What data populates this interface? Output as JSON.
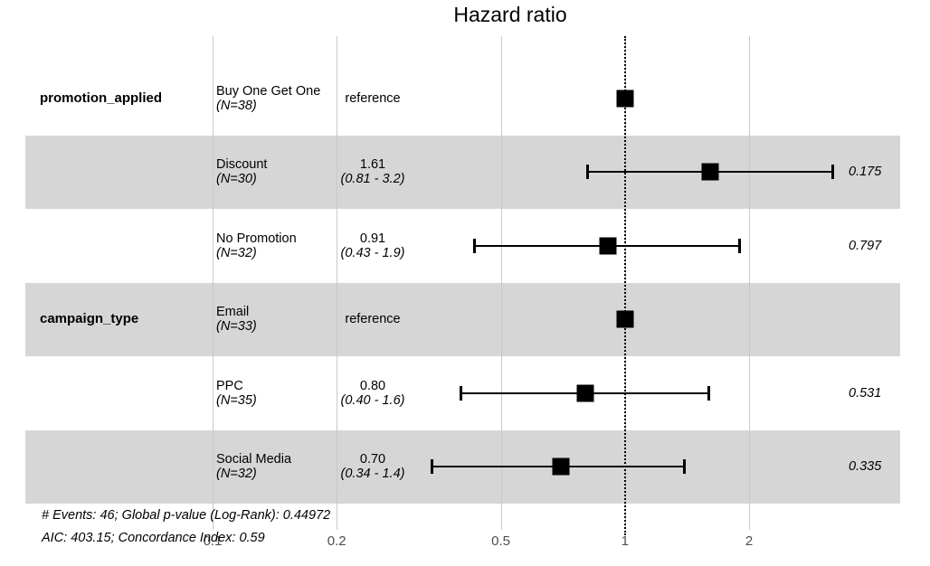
{
  "title": "Hazard ratio",
  "axis": {
    "scale": "log10",
    "reference_line": 1,
    "ticks": [
      {
        "label": "0.1",
        "value": 0.1
      },
      {
        "label": "0.2",
        "value": 0.2
      },
      {
        "label": "0.5",
        "value": 0.5
      },
      {
        "label": "1",
        "value": 1
      },
      {
        "label": "2",
        "value": 2
      }
    ]
  },
  "rows": [
    {
      "variable": "promotion_applied",
      "level": "Buy One Get One",
      "n": "(N=38)",
      "estimate_label": "reference",
      "ci_label": "",
      "hr": 1,
      "lo": null,
      "hi": null,
      "p": "",
      "shaded": false
    },
    {
      "variable": "",
      "level": "Discount",
      "n": "(N=30)",
      "estimate_label": "1.61",
      "ci_label": "(0.81 - 3.2)",
      "hr": 1.61,
      "lo": 0.81,
      "hi": 3.2,
      "p": "0.175",
      "shaded": true
    },
    {
      "variable": "",
      "level": "No Promotion",
      "n": "(N=32)",
      "estimate_label": "0.91",
      "ci_label": "(0.43 - 1.9)",
      "hr": 0.91,
      "lo": 0.43,
      "hi": 1.9,
      "p": "0.797",
      "shaded": false
    },
    {
      "variable": "campaign_type",
      "level": "Email",
      "n": "(N=33)",
      "estimate_label": "reference",
      "ci_label": "",
      "hr": 1,
      "lo": null,
      "hi": null,
      "p": "",
      "shaded": true
    },
    {
      "variable": "",
      "level": "PPC",
      "n": "(N=35)",
      "estimate_label": "0.80",
      "ci_label": "(0.40 - 1.6)",
      "hr": 0.8,
      "lo": 0.4,
      "hi": 1.6,
      "p": "0.531",
      "shaded": false
    },
    {
      "variable": "",
      "level": "Social Media",
      "n": "(N=32)",
      "estimate_label": "0.70",
      "ci_label": "(0.34 - 1.4)",
      "hr": 0.7,
      "lo": 0.34,
      "hi": 1.4,
      "p": "0.335",
      "shaded": true
    }
  ],
  "footnotes": [
    "# Events: 46; Global p-value (Log-Rank): 0.44972",
    "AIC: 403.15; Concordance Index: 0.59"
  ],
  "colors": {
    "stripe": "#d6d6d6",
    "gridline": "#c9c9c9",
    "axis_text": "#4d4d4d",
    "marker": "#000000"
  },
  "chart_data": {
    "type": "forest",
    "title": "Hazard ratio",
    "x_scale": "log10",
    "x_ticks": [
      0.1,
      0.2,
      0.5,
      1,
      2
    ],
    "x_range": [
      0.1,
      3.5
    ],
    "reference_line": 1,
    "grid": true,
    "groups": [
      {
        "variable": "promotion_applied",
        "levels": [
          {
            "label": "Buy One Get One",
            "n": 38,
            "hr": 1.0,
            "ci_low": null,
            "ci_high": null,
            "reference": true,
            "p": null
          },
          {
            "label": "Discount",
            "n": 30,
            "hr": 1.61,
            "ci_low": 0.81,
            "ci_high": 3.2,
            "reference": false,
            "p": 0.175
          },
          {
            "label": "No Promotion",
            "n": 32,
            "hr": 0.91,
            "ci_low": 0.43,
            "ci_high": 1.9,
            "reference": false,
            "p": 0.797
          }
        ]
      },
      {
        "variable": "campaign_type",
        "levels": [
          {
            "label": "Email",
            "n": 33,
            "hr": 1.0,
            "ci_low": null,
            "ci_high": null,
            "reference": true,
            "p": null
          },
          {
            "label": "PPC",
            "n": 35,
            "hr": 0.8,
            "ci_low": 0.4,
            "ci_high": 1.6,
            "reference": false,
            "p": 0.531
          },
          {
            "label": "Social Media",
            "n": 32,
            "hr": 0.7,
            "ci_low": 0.34,
            "ci_high": 1.4,
            "reference": false,
            "p": 0.335
          }
        ]
      }
    ],
    "footnotes": [
      "# Events: 46; Global p-value (Log-Rank): 0.44972",
      "AIC: 403.15; Concordance Index: 0.59"
    ]
  }
}
